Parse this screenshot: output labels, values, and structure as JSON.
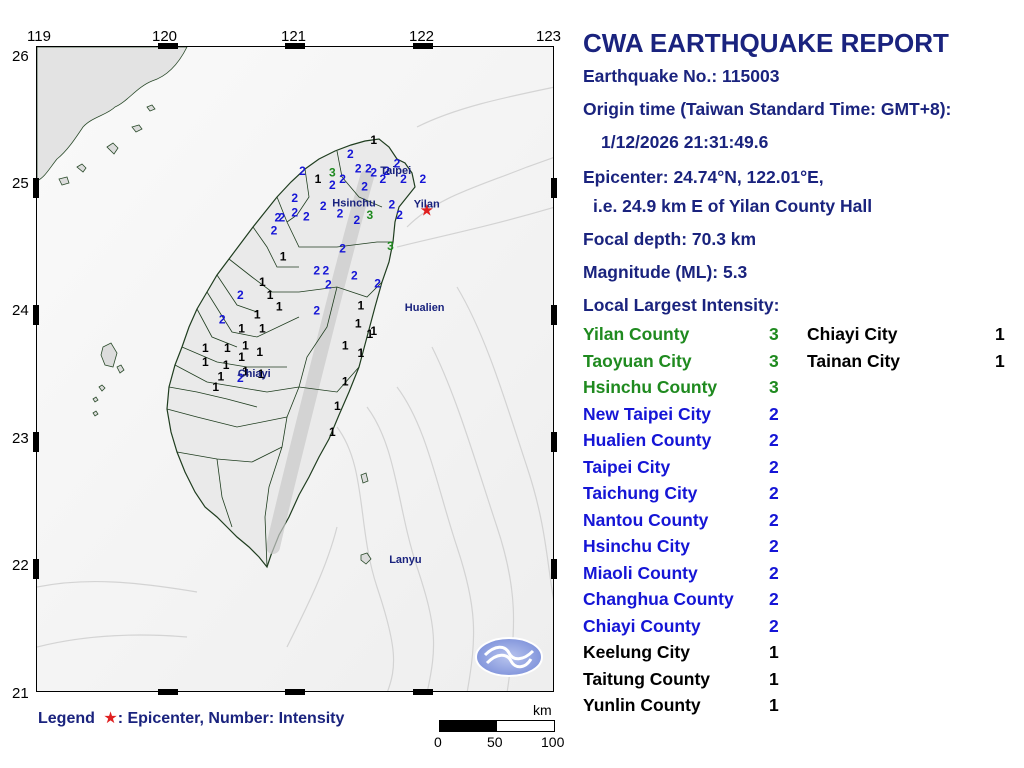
{
  "report": {
    "title": "CWA EARTHQUAKE REPORT",
    "eq_no": "Earthquake No.: 115003",
    "origin_label": "Origin time (Taiwan Standard Time: GMT+8):",
    "origin_time": "1/12/2026 21:31:49.6",
    "epicenter": "Epicenter: 24.74°N, 122.01°E,",
    "epicenter_desc": "i.e. 24.9 km E of Yilan County Hall",
    "depth": "Focal depth: 70.3 km",
    "magnitude": "Magnitude (ML): 5.3",
    "intensity_heading": "Local Largest Intensity:"
  },
  "colors": {
    "int1": "#000000",
    "int2": "#1515d6",
    "int3": "#1f8a1f",
    "epicenter": "#e02020",
    "navy": "#1a237e"
  },
  "intensities_left": [
    {
      "name": "Yilan County",
      "value": "3"
    },
    {
      "name": "Taoyuan City",
      "value": "3"
    },
    {
      "name": "Hsinchu County",
      "value": "3"
    },
    {
      "name": "New Taipei City",
      "value": "2"
    },
    {
      "name": "Hualien County",
      "value": "2"
    },
    {
      "name": "Taipei City",
      "value": "2"
    },
    {
      "name": "Taichung City",
      "value": "2"
    },
    {
      "name": "Nantou County",
      "value": "2"
    },
    {
      "name": "Hsinchu City",
      "value": "2"
    },
    {
      "name": "Miaoli County",
      "value": "2"
    },
    {
      "name": "Changhua County",
      "value": "2"
    },
    {
      "name": "Chiayi County",
      "value": "2"
    },
    {
      "name": "Keelung City",
      "value": "1"
    },
    {
      "name": "Taitung County",
      "value": "1"
    },
    {
      "name": "Yunlin County",
      "value": "1"
    }
  ],
  "intensities_right": [
    {
      "name": "Chiayi City",
      "value": "1"
    },
    {
      "name": "Tainan City",
      "value": "1"
    }
  ],
  "map": {
    "lon_ticks": [
      "119",
      "120",
      "121",
      "122",
      "123"
    ],
    "lat_ticks": [
      "26",
      "25",
      "24",
      "23",
      "22",
      "21"
    ],
    "places": [
      {
        "name": "Taipei",
        "lon": 121.65,
        "lat": 25.04
      },
      {
        "name": "Hsinchu",
        "lon": 121.28,
        "lat": 24.79
      },
      {
        "name": "Yilan",
        "lon": 121.91,
        "lat": 24.78
      },
      {
        "name": "Hualien",
        "lon": 121.84,
        "lat": 23.98
      },
      {
        "name": "Chiayi",
        "lon": 120.55,
        "lat": 23.47
      },
      {
        "name": "Lanyu",
        "lon": 121.72,
        "lat": 22.03
      }
    ],
    "epicenter": {
      "lon": 122.01,
      "lat": 24.74
    },
    "stations": [
      {
        "v": "1",
        "lon": 121.6,
        "lat": 25.28
      },
      {
        "v": "2",
        "lon": 121.42,
        "lat": 25.17
      },
      {
        "v": "2",
        "lon": 121.48,
        "lat": 25.06
      },
      {
        "v": "2",
        "lon": 121.6,
        "lat": 25.03
      },
      {
        "v": "2",
        "lon": 121.7,
        "lat": 25.04
      },
      {
        "v": "2",
        "lon": 121.78,
        "lat": 25.1
      },
      {
        "v": "2",
        "lon": 121.83,
        "lat": 24.98
      },
      {
        "v": "2",
        "lon": 121.05,
        "lat": 25.04
      },
      {
        "v": "1",
        "lon": 121.17,
        "lat": 24.98
      },
      {
        "v": "3",
        "lon": 121.28,
        "lat": 25.03
      },
      {
        "v": "2",
        "lon": 121.36,
        "lat": 24.98
      },
      {
        "v": "2",
        "lon": 121.28,
        "lat": 24.93
      },
      {
        "v": "2",
        "lon": 121.53,
        "lat": 24.92
      },
      {
        "v": "2",
        "lon": 121.56,
        "lat": 25.06
      },
      {
        "v": "2",
        "lon": 121.67,
        "lat": 24.98
      },
      {
        "v": "2",
        "lon": 121.98,
        "lat": 24.98
      },
      {
        "v": "2",
        "lon": 121.74,
        "lat": 24.78
      },
      {
        "v": "2",
        "lon": 121.8,
        "lat": 24.7
      },
      {
        "v": "3",
        "lon": 121.57,
        "lat": 24.7
      },
      {
        "v": "2",
        "lon": 121.47,
        "lat": 24.66
      },
      {
        "v": "2",
        "lon": 121.34,
        "lat": 24.71
      },
      {
        "v": "2",
        "lon": 121.21,
        "lat": 24.77
      },
      {
        "v": "2",
        "lon": 120.99,
        "lat": 24.83
      },
      {
        "v": "2",
        "lon": 120.99,
        "lat": 24.72
      },
      {
        "v": "2",
        "lon": 121.08,
        "lat": 24.69
      },
      {
        "v": "2",
        "lon": 120.86,
        "lat": 24.68
      },
      {
        "v": "2",
        "lon": 120.83,
        "lat": 24.58
      },
      {
        "v": "2",
        "lon": 120.89,
        "lat": 24.68
      },
      {
        "v": "2",
        "lon": 121.36,
        "lat": 24.44
      },
      {
        "v": "3",
        "lon": 121.73,
        "lat": 24.46
      },
      {
        "v": "2",
        "lon": 121.16,
        "lat": 24.27
      },
      {
        "v": "2",
        "lon": 121.23,
        "lat": 24.27
      },
      {
        "v": "2",
        "lon": 121.45,
        "lat": 24.23
      },
      {
        "v": "2",
        "lon": 121.25,
        "lat": 24.16
      },
      {
        "v": "2",
        "lon": 121.63,
        "lat": 24.17
      },
      {
        "v": "2",
        "lon": 120.57,
        "lat": 24.08
      },
      {
        "v": "2",
        "lon": 120.43,
        "lat": 23.89
      },
      {
        "v": "2",
        "lon": 121.16,
        "lat": 23.96
      },
      {
        "v": "1",
        "lon": 120.9,
        "lat": 24.38
      },
      {
        "v": "1",
        "lon": 120.74,
        "lat": 24.18
      },
      {
        "v": "1",
        "lon": 120.8,
        "lat": 24.08
      },
      {
        "v": "1",
        "lon": 120.87,
        "lat": 23.99
      },
      {
        "v": "1",
        "lon": 120.7,
        "lat": 23.93
      },
      {
        "v": "1",
        "lon": 120.74,
        "lat": 23.82
      },
      {
        "v": "1",
        "lon": 120.58,
        "lat": 23.82
      },
      {
        "v": "1",
        "lon": 120.61,
        "lat": 23.69
      },
      {
        "v": "1",
        "lon": 120.3,
        "lat": 23.67
      },
      {
        "v": "1",
        "lon": 120.47,
        "lat": 23.67
      },
      {
        "v": "1",
        "lon": 120.58,
        "lat": 23.6
      },
      {
        "v": "1",
        "lon": 120.72,
        "lat": 23.64
      },
      {
        "v": "1",
        "lon": 120.3,
        "lat": 23.56
      },
      {
        "v": "1",
        "lon": 120.46,
        "lat": 23.54
      },
      {
        "v": "1",
        "lon": 120.61,
        "lat": 23.49
      },
      {
        "v": "1",
        "lon": 120.42,
        "lat": 23.45
      },
      {
        "v": "2",
        "lon": 120.57,
        "lat": 23.44
      },
      {
        "v": "1",
        "lon": 120.73,
        "lat": 23.47
      },
      {
        "v": "1",
        "lon": 120.38,
        "lat": 23.37
      },
      {
        "v": "1",
        "lon": 121.5,
        "lat": 24.0
      },
      {
        "v": "1",
        "lon": 121.48,
        "lat": 23.86
      },
      {
        "v": "1",
        "lon": 121.57,
        "lat": 23.78
      },
      {
        "v": "1",
        "lon": 121.38,
        "lat": 23.69
      },
      {
        "v": "1",
        "lon": 121.5,
        "lat": 23.63
      },
      {
        "v": "1",
        "lon": 121.38,
        "lat": 23.41
      },
      {
        "v": "1",
        "lon": 121.32,
        "lat": 23.22
      },
      {
        "v": "1",
        "lon": 121.28,
        "lat": 23.02
      },
      {
        "v": "1",
        "lon": 121.6,
        "lat": 23.8
      }
    ]
  },
  "legend": {
    "label": "Legend",
    "star": "★",
    "text": ": Epicenter, Number: Intensity"
  },
  "scale": {
    "unit": "km",
    "labels": [
      "0",
      "50",
      "100"
    ]
  }
}
